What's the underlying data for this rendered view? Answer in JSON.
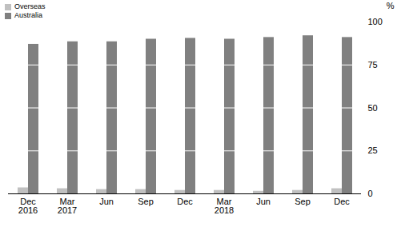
{
  "chart_data": {
    "type": "bar",
    "categories": [
      "Dec\n2016",
      "Mar\n2017",
      "Jun",
      "Sep",
      "Dec",
      "Mar\n2018",
      "Jun",
      "Sep",
      "Dec"
    ],
    "series": [
      {
        "name": "Overseas",
        "color": "#c0c0c0",
        "values": [
          3.5,
          3,
          2.5,
          2.5,
          2,
          2,
          1.5,
          2,
          3
        ]
      },
      {
        "name": "Australia",
        "color": "#808080",
        "values": [
          87,
          88.5,
          88.5,
          90,
          90.5,
          90,
          91,
          92,
          91
        ]
      }
    ],
    "y_label": "%",
    "ylim": [
      0,
      100
    ],
    "yticks": [
      0,
      25,
      50,
      75,
      100
    ],
    "grid": true,
    "legend": "top-left"
  }
}
